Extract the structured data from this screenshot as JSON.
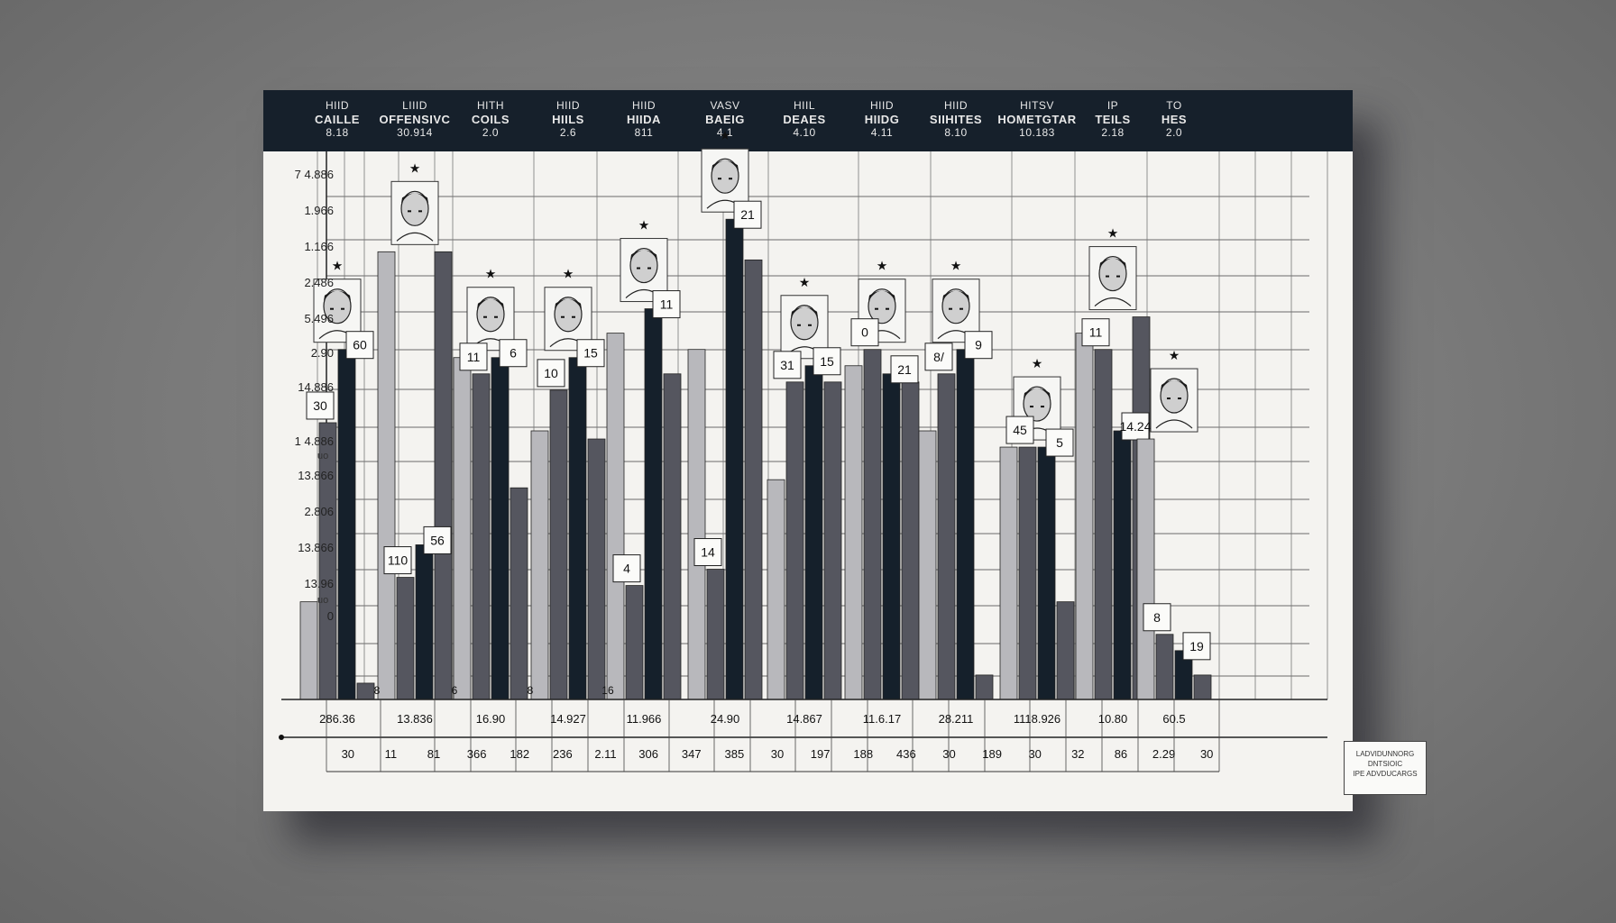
{
  "chart_data": {
    "type": "bar",
    "title": "",
    "header_columns": [
      {
        "l1": "HIID",
        "l2": "CAILLE",
        "l3": "8.18"
      },
      {
        "l1": "LIIID",
        "l2": "OFFENSIVC",
        "l3": "30.914"
      },
      {
        "l1": "HITH",
        "l2": "COILS",
        "l3": "2.0"
      },
      {
        "l1": "HIID",
        "l2": "HIILS",
        "l3": "2.6"
      },
      {
        "l1": "HIID",
        "l2": "HIIDA",
        "l3": "811"
      },
      {
        "l1": "VASV",
        "l2": "BAEIG",
        "l3": "4.1"
      },
      {
        "l1": "HIIL",
        "l2": "DEAES",
        "l3": "4.10"
      },
      {
        "l1": "HIID",
        "l2": "HIIDG",
        "l3": "4.11"
      },
      {
        "l1": "HIID",
        "l2": "SIIHITES",
        "l3": "8.10"
      },
      {
        "l1": "HITSV",
        "l2": "HOMETGTAR",
        "l3": "10.183"
      },
      {
        "l1": "IP",
        "l2": "TEILS",
        "l3": "2.18"
      },
      {
        "l1": "TO",
        "l2": "HES",
        "l3": "2.0"
      }
    ],
    "y_tick_labels": [
      "7 4.886",
      "1.966",
      "1.166",
      "2.486",
      "5.496",
      "2.90",
      "14.886",
      "1 4.886",
      "13.866",
      "2.806",
      "13.866",
      "13.96",
      "0"
    ],
    "y_small_labels": [
      "uo",
      "uo"
    ],
    "series": [
      {
        "name": "series-a",
        "values": [
          1.2,
          5.5,
          4.2,
          3.3,
          4.5,
          4.3,
          2.7,
          4.1,
          3.3,
          3.1,
          4.5,
          3.2
        ]
      },
      {
        "name": "series-b",
        "values": [
          3.4,
          1.5,
          4.0,
          3.8,
          1.4,
          1.6,
          3.9,
          4.3,
          4.0,
          3.1,
          4.3,
          0.8
        ]
      },
      {
        "name": "series-c",
        "values": [
          4.3,
          1.9,
          4.2,
          4.2,
          4.8,
          5.9,
          4.1,
          4.0,
          4.3,
          3.1,
          3.3,
          0.6
        ]
      },
      {
        "name": "series-d",
        "values": [
          0.2,
          5.5,
          2.6,
          3.2,
          4.0,
          5.4,
          3.9,
          3.9,
          0.3,
          1.2,
          4.7,
          0.3
        ]
      }
    ],
    "value_labels": [
      "30",
      "60",
      "110",
      "56",
      "11",
      "6",
      "10",
      "15",
      "4",
      "11",
      "14",
      "21",
      "31",
      "15",
      "0",
      "21",
      "8/",
      "9",
      "45",
      "5",
      "11",
      "14.24",
      "8",
      "19",
      "8",
      "6",
      "8",
      "16"
    ],
    "bottom_row_1": [
      "286.36",
      "13.836",
      "16.90",
      "14.927",
      "11.966",
      "24.90",
      "14.867",
      "11.6.17",
      "28.211",
      "1118.926",
      "10.80",
      "60.5"
    ],
    "bottom_row_2": [
      "30",
      "11",
      "81",
      "366",
      "182",
      "236",
      "2.11",
      "306",
      "347",
      "385",
      "30",
      "197",
      "188",
      "436",
      "30",
      "189",
      "30",
      "32",
      "86",
      "2.29",
      "30"
    ],
    "legend_lines": [
      "LADVIDUNNORG",
      "DNTSIOIC",
      "IPE ADVDUCARGS"
    ]
  },
  "colors": {
    "header_bg": "#16202b",
    "card_bg": "#f4f3f0",
    "dark": "#15202b",
    "mid": "#55565f",
    "light": "#b8b8bc"
  }
}
